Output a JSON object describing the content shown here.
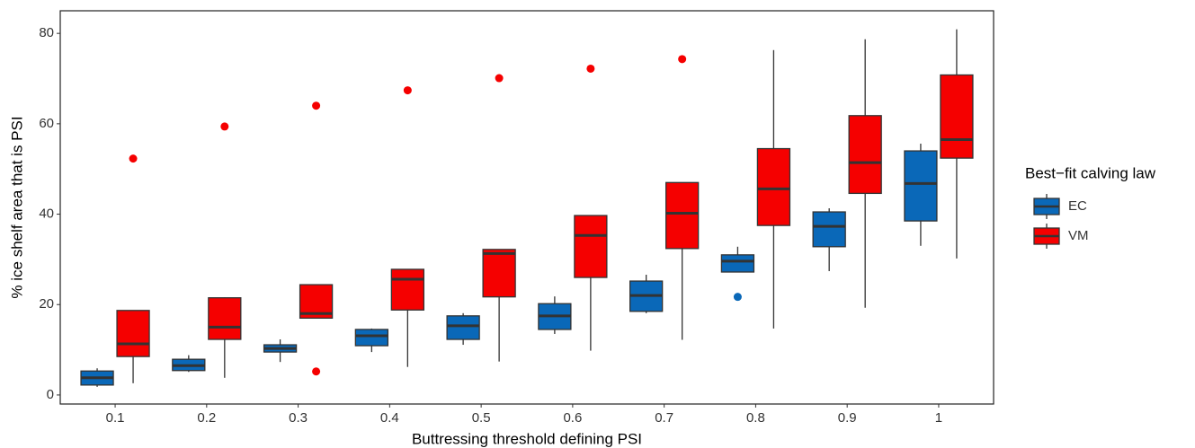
{
  "chart_data": {
    "type": "box",
    "x_label": "Buttressing threshold defining PSI",
    "y_label": "% ice shelf area that is PSI",
    "legend_title": "Best−fit calving law",
    "legend_position": "right",
    "categories": [
      "0.1",
      "0.2",
      "0.3",
      "0.4",
      "0.5",
      "0.6",
      "0.7",
      "0.8",
      "0.9",
      "1"
    ],
    "ylim": [
      -2,
      85
    ],
    "yticks": [
      0,
      20,
      40,
      60,
      80
    ],
    "grid": false,
    "series": [
      {
        "name": "EC",
        "color": "#0a68b8",
        "low": [
          1.8,
          5.1,
          7.3,
          9.5,
          11.1,
          13.5,
          18.1,
          27.2,
          27.4,
          33.0
        ],
        "q1": [
          2.2,
          5.4,
          9.5,
          10.9,
          12.3,
          14.5,
          18.5,
          27.2,
          32.8,
          38.5
        ],
        "median": [
          3.8,
          6.5,
          10.3,
          13.1,
          15.3,
          17.5,
          22.0,
          29.6,
          37.3,
          46.8
        ],
        "q3": [
          5.3,
          7.9,
          11.1,
          14.5,
          17.5,
          20.2,
          25.2,
          31.0,
          40.5,
          54.0
        ],
        "high": [
          5.9,
          8.8,
          12.3,
          14.7,
          18.1,
          21.8,
          26.6,
          32.8,
          41.3,
          55.6
        ],
        "outliers": [
          [],
          [],
          [],
          [],
          [],
          [],
          [],
          [
            21.7
          ],
          [],
          []
        ]
      },
      {
        "name": "VM",
        "color": "#f50000",
        "low": [
          2.6,
          3.8,
          17.0,
          6.2,
          7.4,
          9.8,
          12.2,
          14.7,
          19.3,
          30.2
        ],
        "q1": [
          8.5,
          12.3,
          17.0,
          18.8,
          21.7,
          26.0,
          32.4,
          37.5,
          44.6,
          52.4
        ],
        "median": [
          11.3,
          15.0,
          18.0,
          25.6,
          31.3,
          35.3,
          40.2,
          45.6,
          51.4,
          56.5
        ],
        "q3": [
          18.7,
          21.5,
          24.4,
          27.8,
          32.2,
          39.7,
          47.0,
          54.5,
          61.8,
          70.8
        ],
        "high": [
          18.7,
          21.6,
          24.4,
          27.8,
          32.2,
          39.7,
          47.0,
          76.3,
          78.7,
          80.9
        ],
        "outliers": [
          [
            52.3
          ],
          [
            59.4
          ],
          [
            5.2,
            64.0
          ],
          [
            67.4
          ],
          [
            70.1
          ],
          [
            72.2
          ],
          [
            74.3
          ],
          [],
          [],
          []
        ]
      }
    ]
  }
}
